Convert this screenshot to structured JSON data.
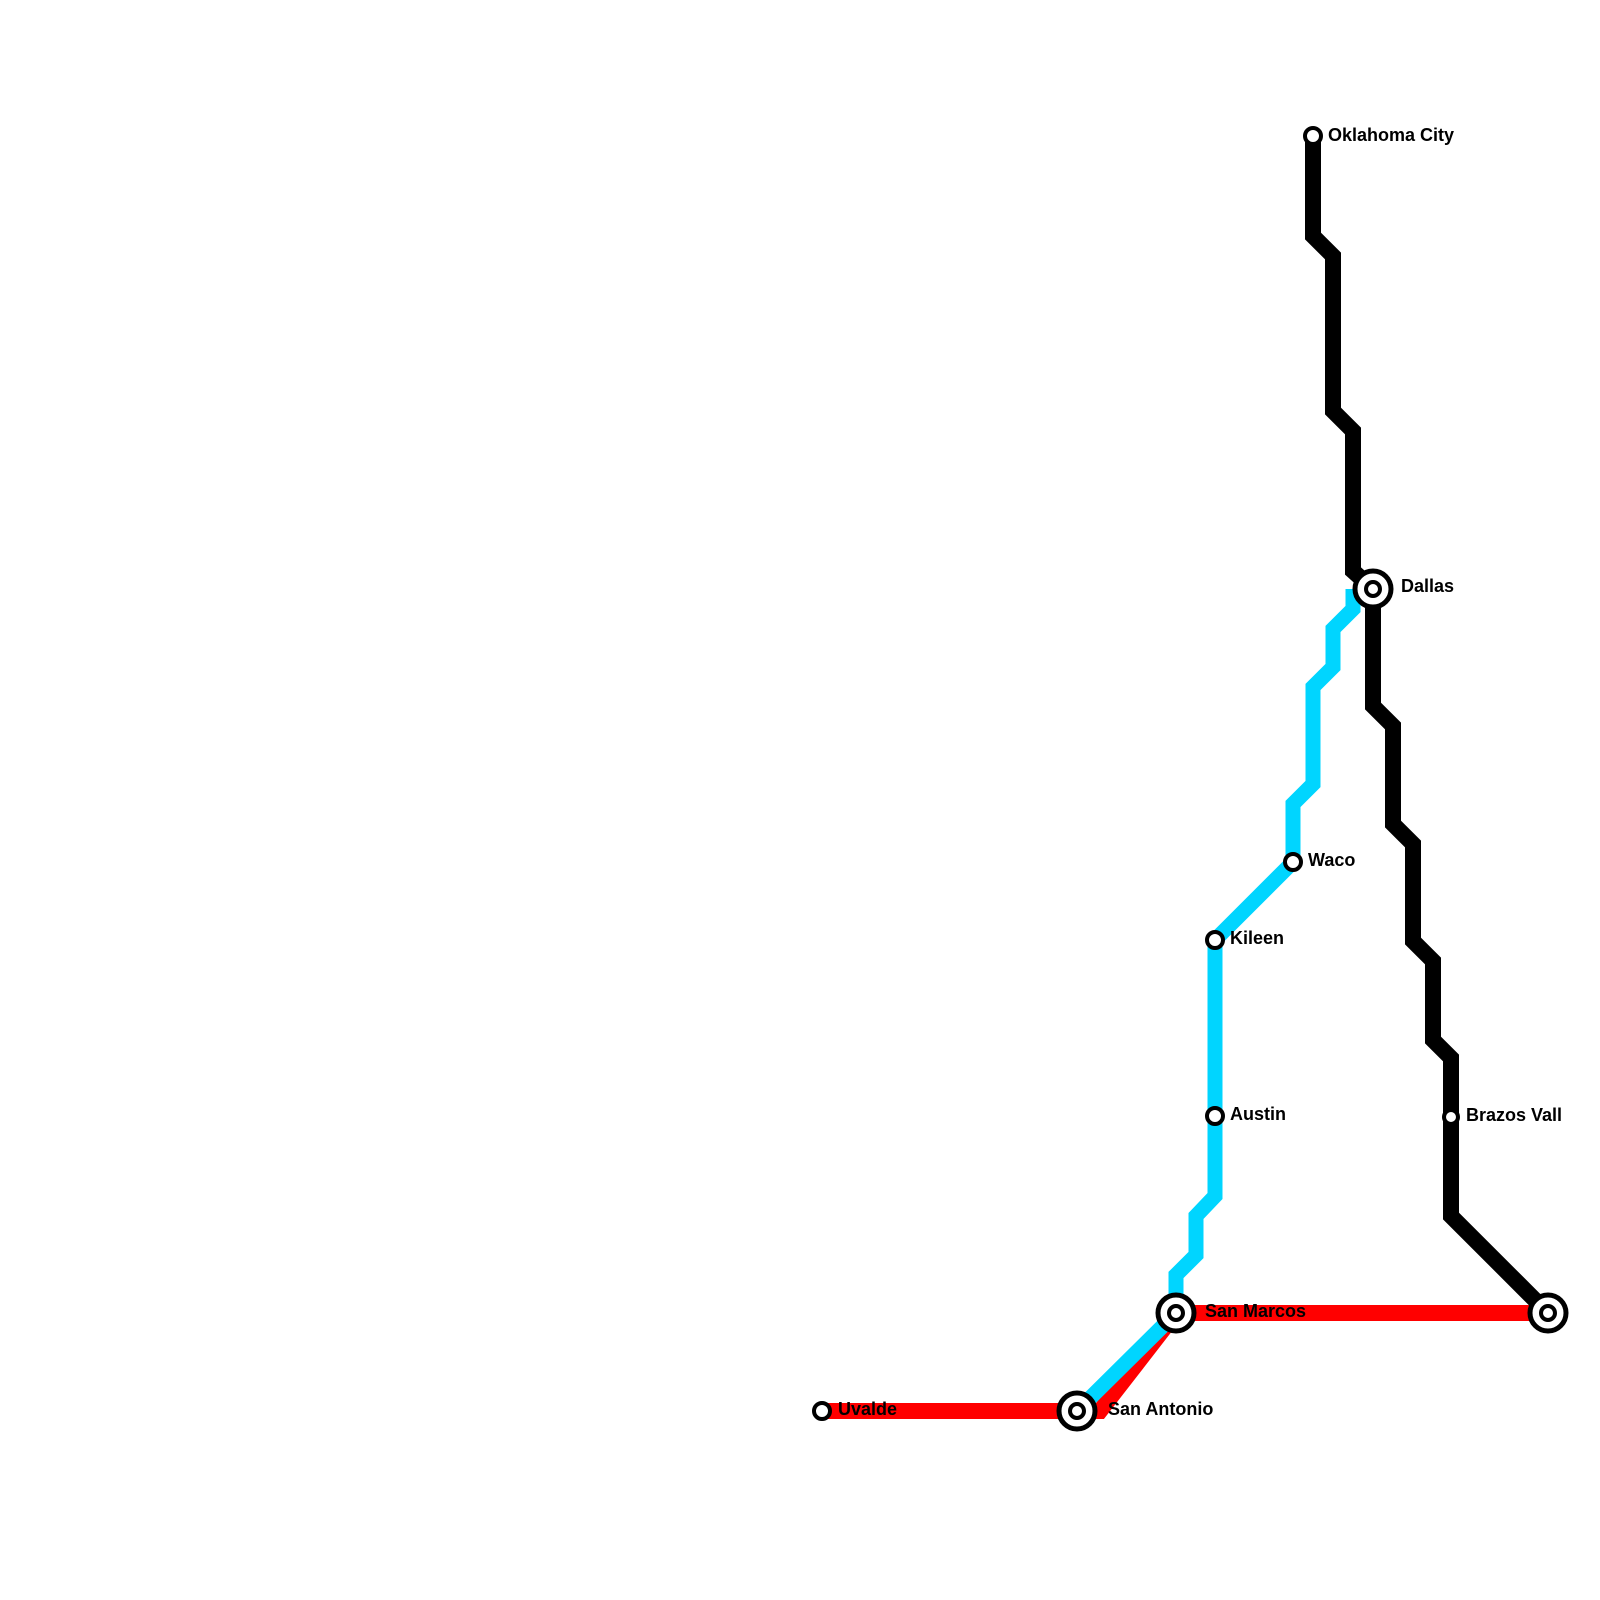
{
  "stations": [
    {
      "label": "Oklahoma City"
    },
    {
      "label": "Dallas"
    },
    {
      "label": "Waco"
    },
    {
      "label": "Kileen"
    },
    {
      "label": "Austin"
    },
    {
      "label": "Brazos Vall"
    },
    {
      "label": "San Marcos"
    },
    {
      "label": "San Antonio"
    },
    {
      "label": "Uvalde"
    }
  ]
}
